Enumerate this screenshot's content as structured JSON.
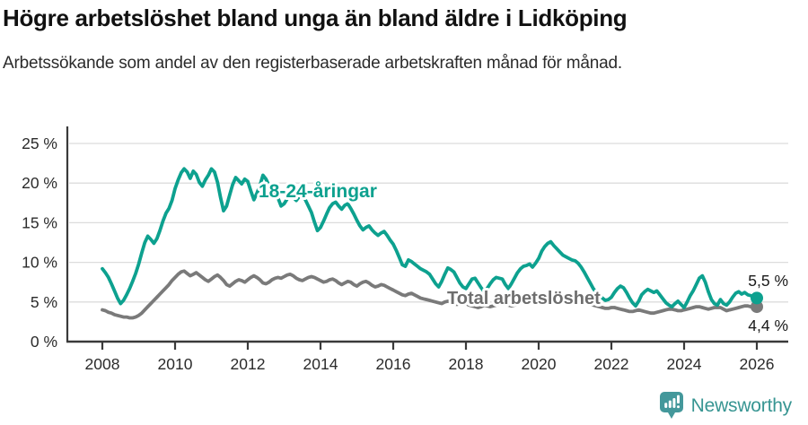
{
  "footer": {
    "brand": "Newsworthy"
  },
  "chart_data": {
    "type": "line",
    "title": "Högre arbetslöshet bland unga än bland äldre i Lidköping",
    "subtitle": "Arbetssökande som andel av den registerbaserade arbetskraften månad för månad.",
    "x_unit": "month",
    "x_start_year": 2008,
    "x_range": [
      "2008-01",
      "2026-01"
    ],
    "ylim": [
      0,
      25
    ],
    "grid": true,
    "legend_position": "inline-labels",
    "y_ticks": [
      {
        "value": 0,
        "label": "0 %"
      },
      {
        "value": 5,
        "label": "5 %"
      },
      {
        "value": 10,
        "label": "10 %"
      },
      {
        "value": 15,
        "label": "15 %"
      },
      {
        "value": 20,
        "label": "20 %"
      },
      {
        "value": 25,
        "label": "25 %"
      }
    ],
    "x_ticks": [
      {
        "value": 2008,
        "label": "2008"
      },
      {
        "value": 2010,
        "label": "2010"
      },
      {
        "value": 2012,
        "label": "2012"
      },
      {
        "value": 2014,
        "label": "2014"
      },
      {
        "value": 2016,
        "label": "2016"
      },
      {
        "value": 2018,
        "label": "2018"
      },
      {
        "value": 2020,
        "label": "2020"
      },
      {
        "value": 2022,
        "label": "2022"
      },
      {
        "value": 2024,
        "label": "2024"
      },
      {
        "value": 2026,
        "label": "2026"
      }
    ],
    "series": [
      {
        "name": "Total arbetslöshet",
        "color": "#7a7a7a",
        "label_color": "#6e6e6e",
        "end_value": 4.4,
        "end_label": "4,4 %",
        "values": [
          4.0,
          3.9,
          3.7,
          3.6,
          3.4,
          3.3,
          3.2,
          3.1,
          3.1,
          3.0,
          3.0,
          3.1,
          3.3,
          3.6,
          4.0,
          4.4,
          4.8,
          5.2,
          5.6,
          6.0,
          6.4,
          6.8,
          7.2,
          7.7,
          8.1,
          8.5,
          8.8,
          8.9,
          8.6,
          8.3,
          8.5,
          8.7,
          8.4,
          8.1,
          7.8,
          7.6,
          7.9,
          8.2,
          8.4,
          8.1,
          7.7,
          7.2,
          7.0,
          7.3,
          7.6,
          7.8,
          7.7,
          7.5,
          7.8,
          8.1,
          8.3,
          8.1,
          7.8,
          7.4,
          7.3,
          7.5,
          7.8,
          8.0,
          8.1,
          8.0,
          8.2,
          8.4,
          8.5,
          8.3,
          8.0,
          7.8,
          7.7,
          7.9,
          8.1,
          8.2,
          8.1,
          7.9,
          7.7,
          7.5,
          7.6,
          7.8,
          7.9,
          7.7,
          7.4,
          7.2,
          7.4,
          7.6,
          7.5,
          7.2,
          7.0,
          7.3,
          7.5,
          7.6,
          7.4,
          7.1,
          6.9,
          7.0,
          7.2,
          7.1,
          6.9,
          6.7,
          6.5,
          6.3,
          6.1,
          5.9,
          5.8,
          6.0,
          6.1,
          5.9,
          5.7,
          5.5,
          5.4,
          5.3,
          5.2,
          5.1,
          5.0,
          4.9,
          4.8,
          5.0,
          5.1,
          5.0,
          4.8,
          4.7,
          4.8,
          4.9,
          4.8,
          4.6,
          4.5,
          4.4,
          4.3,
          4.4,
          4.6,
          4.5,
          4.4,
          4.5,
          4.6,
          4.7,
          4.8,
          4.7,
          4.6,
          4.5,
          4.6,
          4.7,
          4.9,
          4.8,
          4.7,
          4.8,
          4.9,
          5.0,
          5.2,
          5.5,
          5.7,
          5.9,
          6.0,
          5.8,
          5.9,
          5.8,
          5.7,
          5.6,
          5.5,
          5.4,
          5.4,
          5.3,
          5.1,
          5.0,
          4.8,
          4.7,
          4.6,
          4.5,
          4.4,
          4.3,
          4.2,
          4.2,
          4.3,
          4.3,
          4.2,
          4.1,
          4.0,
          3.9,
          3.8,
          3.8,
          3.9,
          4.0,
          3.9,
          3.8,
          3.7,
          3.6,
          3.6,
          3.7,
          3.8,
          3.9,
          4.0,
          4.1,
          4.1,
          4.0,
          3.9,
          3.9,
          4.0,
          4.1,
          4.2,
          4.3,
          4.4,
          4.4,
          4.3,
          4.2,
          4.1,
          4.2,
          4.3,
          4.3,
          4.3,
          4.1,
          3.9,
          4.0,
          4.1,
          4.2,
          4.3,
          4.4,
          4.5,
          4.5,
          4.4,
          4.4,
          4.4
        ]
      },
      {
        "name": "18-24-åringar",
        "color": "#0da18f",
        "label_color": "#0da18f",
        "end_value": 5.5,
        "end_label": "5,5 %",
        "values": [
          9.2,
          8.7,
          8.1,
          7.3,
          6.4,
          5.5,
          4.8,
          5.2,
          5.9,
          6.7,
          7.6,
          8.6,
          9.8,
          11.2,
          12.5,
          13.3,
          12.9,
          12.4,
          13.0,
          14.0,
          15.2,
          16.2,
          16.8,
          17.8,
          19.3,
          20.4,
          21.3,
          21.8,
          21.4,
          20.6,
          21.5,
          21.1,
          20.1,
          19.6,
          20.4,
          21.0,
          21.8,
          21.4,
          20.1,
          18.2,
          16.5,
          17.1,
          18.5,
          19.8,
          20.7,
          20.3,
          19.9,
          20.5,
          20.2,
          19.0,
          17.9,
          18.7,
          19.7,
          21.0,
          20.5,
          19.7,
          18.9,
          19.1,
          18.1,
          17.1,
          17.4,
          18.0,
          18.6,
          18.2,
          17.8,
          18.3,
          18.6,
          17.9,
          17.1,
          16.3,
          15.1,
          14.0,
          14.4,
          15.2,
          16.1,
          16.9,
          17.4,
          17.6,
          17.1,
          16.7,
          17.2,
          17.4,
          16.8,
          16.1,
          15.3,
          14.6,
          14.1,
          14.4,
          14.6,
          14.1,
          13.7,
          13.4,
          13.7,
          13.9,
          13.4,
          12.8,
          12.3,
          11.5,
          10.6,
          9.7,
          9.5,
          10.3,
          10.1,
          9.8,
          9.5,
          9.2,
          9.0,
          8.8,
          8.5,
          7.9,
          7.3,
          6.9,
          7.6,
          8.5,
          9.3,
          9.1,
          8.8,
          8.1,
          7.4,
          6.9,
          6.7,
          7.3,
          7.9,
          8.0,
          7.4,
          6.8,
          6.3,
          6.7,
          7.3,
          7.8,
          8.1,
          8.0,
          7.9,
          7.2,
          6.7,
          7.3,
          8.0,
          8.7,
          9.2,
          9.5,
          9.6,
          9.8,
          9.4,
          9.9,
          10.5,
          11.4,
          12.0,
          12.4,
          12.6,
          12.1,
          11.7,
          11.3,
          10.9,
          10.7,
          10.5,
          10.3,
          10.2,
          9.9,
          9.4,
          8.8,
          8.1,
          7.4,
          6.7,
          6.2,
          5.9,
          5.5,
          5.2,
          5.3,
          5.6,
          6.2,
          6.7,
          7.0,
          6.8,
          6.2,
          5.5,
          4.9,
          4.5,
          5.1,
          5.9,
          6.3,
          6.6,
          6.4,
          6.2,
          6.4,
          5.9,
          5.4,
          4.9,
          4.6,
          4.4,
          4.8,
          5.1,
          4.7,
          4.3,
          5.0,
          5.8,
          6.4,
          7.2,
          8.0,
          8.3,
          7.5,
          6.3,
          5.3,
          4.8,
          4.6,
          5.3,
          4.8,
          4.6,
          5.0,
          5.6,
          6.1,
          6.3,
          6.0,
          6.2,
          5.9,
          5.8,
          5.6,
          5.5
        ]
      }
    ]
  }
}
